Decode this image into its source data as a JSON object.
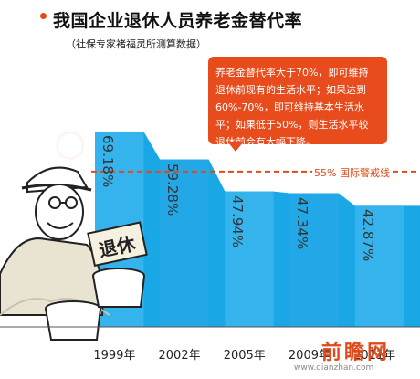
{
  "title": "我国企业退休人员养老金替代率",
  "subtitle": "（社保专家褚福灵所测算数据）",
  "infobox": {
    "lines": [
      "养老金替代率大于70%，即可维持",
      "退休前现有的生活水平；如果达到",
      "60%-70%，即可维持基本生活水",
      "平；如果低于50%，则生活水平较",
      "退休前会有大幅下降。"
    ]
  },
  "illustration": {
    "sign_text": "退休"
  },
  "watermark": {
    "logo_text": "前瞻网",
    "url": "www.qianzhan.com"
  },
  "colors": {
    "accent": "#e84b1c",
    "area": "#1aa7e6",
    "area_dark": "#0f8ecb",
    "warn_line": "#e04a1a"
  },
  "chart_data": {
    "type": "area",
    "categories": [
      "1999年",
      "2002年",
      "2005年",
      "2009年",
      "2011年"
    ],
    "values": [
      69.18,
      59.28,
      47.94,
      47.34,
      42.87
    ],
    "value_labels": [
      "69.18%",
      "59.28%",
      "47.94%",
      "47.34%",
      "42.87%"
    ],
    "unit": "%",
    "title": "我国企业退休人员养老金替代率",
    "xlabel": "",
    "ylabel": "",
    "ylim": [
      0,
      85
    ],
    "grid": false,
    "annotations": [
      {
        "type": "hline",
        "value": 55,
        "label": "55% 国际警戒线"
      }
    ]
  }
}
